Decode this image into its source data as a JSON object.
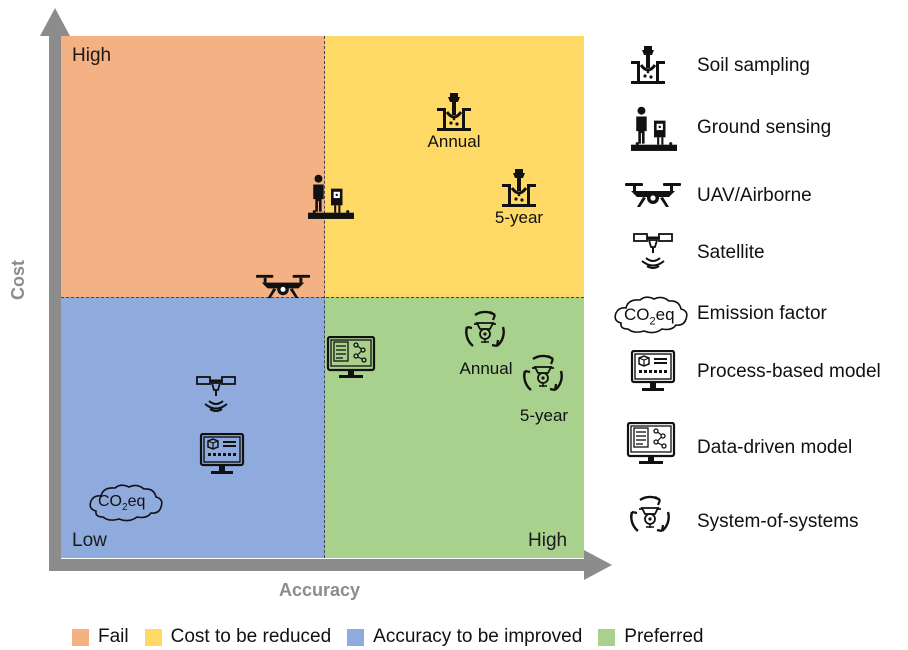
{
  "axes": {
    "x_label": "Accuracy",
    "y_label": "Cost",
    "top_left_label": "High",
    "bottom_left_label": "Low",
    "bottom_right_label": "High"
  },
  "quadrants": [
    {
      "name": "Fail",
      "color": "#F4B183"
    },
    {
      "name": "Cost to be reduced",
      "color": "#FFD966"
    },
    {
      "name": "Accuracy to be improved",
      "color": "#8FAADC"
    },
    {
      "name": "Preferred",
      "color": "#A9D18E"
    }
  ],
  "plot_labels": {
    "soil_annual": "Annual",
    "soil_5year": "5-year",
    "sos_annual": "Annual",
    "sos_5year": "5-year"
  },
  "legend": [
    {
      "icon": "soil-sampling-icon",
      "label": "Soil sampling"
    },
    {
      "icon": "ground-sensing-icon",
      "label": "Ground sensing"
    },
    {
      "icon": "uav-icon",
      "label": "UAV/Airborne"
    },
    {
      "icon": "satellite-icon",
      "label": "Satellite"
    },
    {
      "icon": "co2eq-icon",
      "label": "Emission factor"
    },
    {
      "icon": "process-model-icon",
      "label": "Process-based model"
    },
    {
      "icon": "data-driven-model-icon",
      "label": "Data-driven model"
    },
    {
      "icon": "system-of-systems-icon",
      "label": "System-of-systems"
    }
  ],
  "co2_text": "CO",
  "co2_sub": "2",
  "co2_suffix": "eq"
}
